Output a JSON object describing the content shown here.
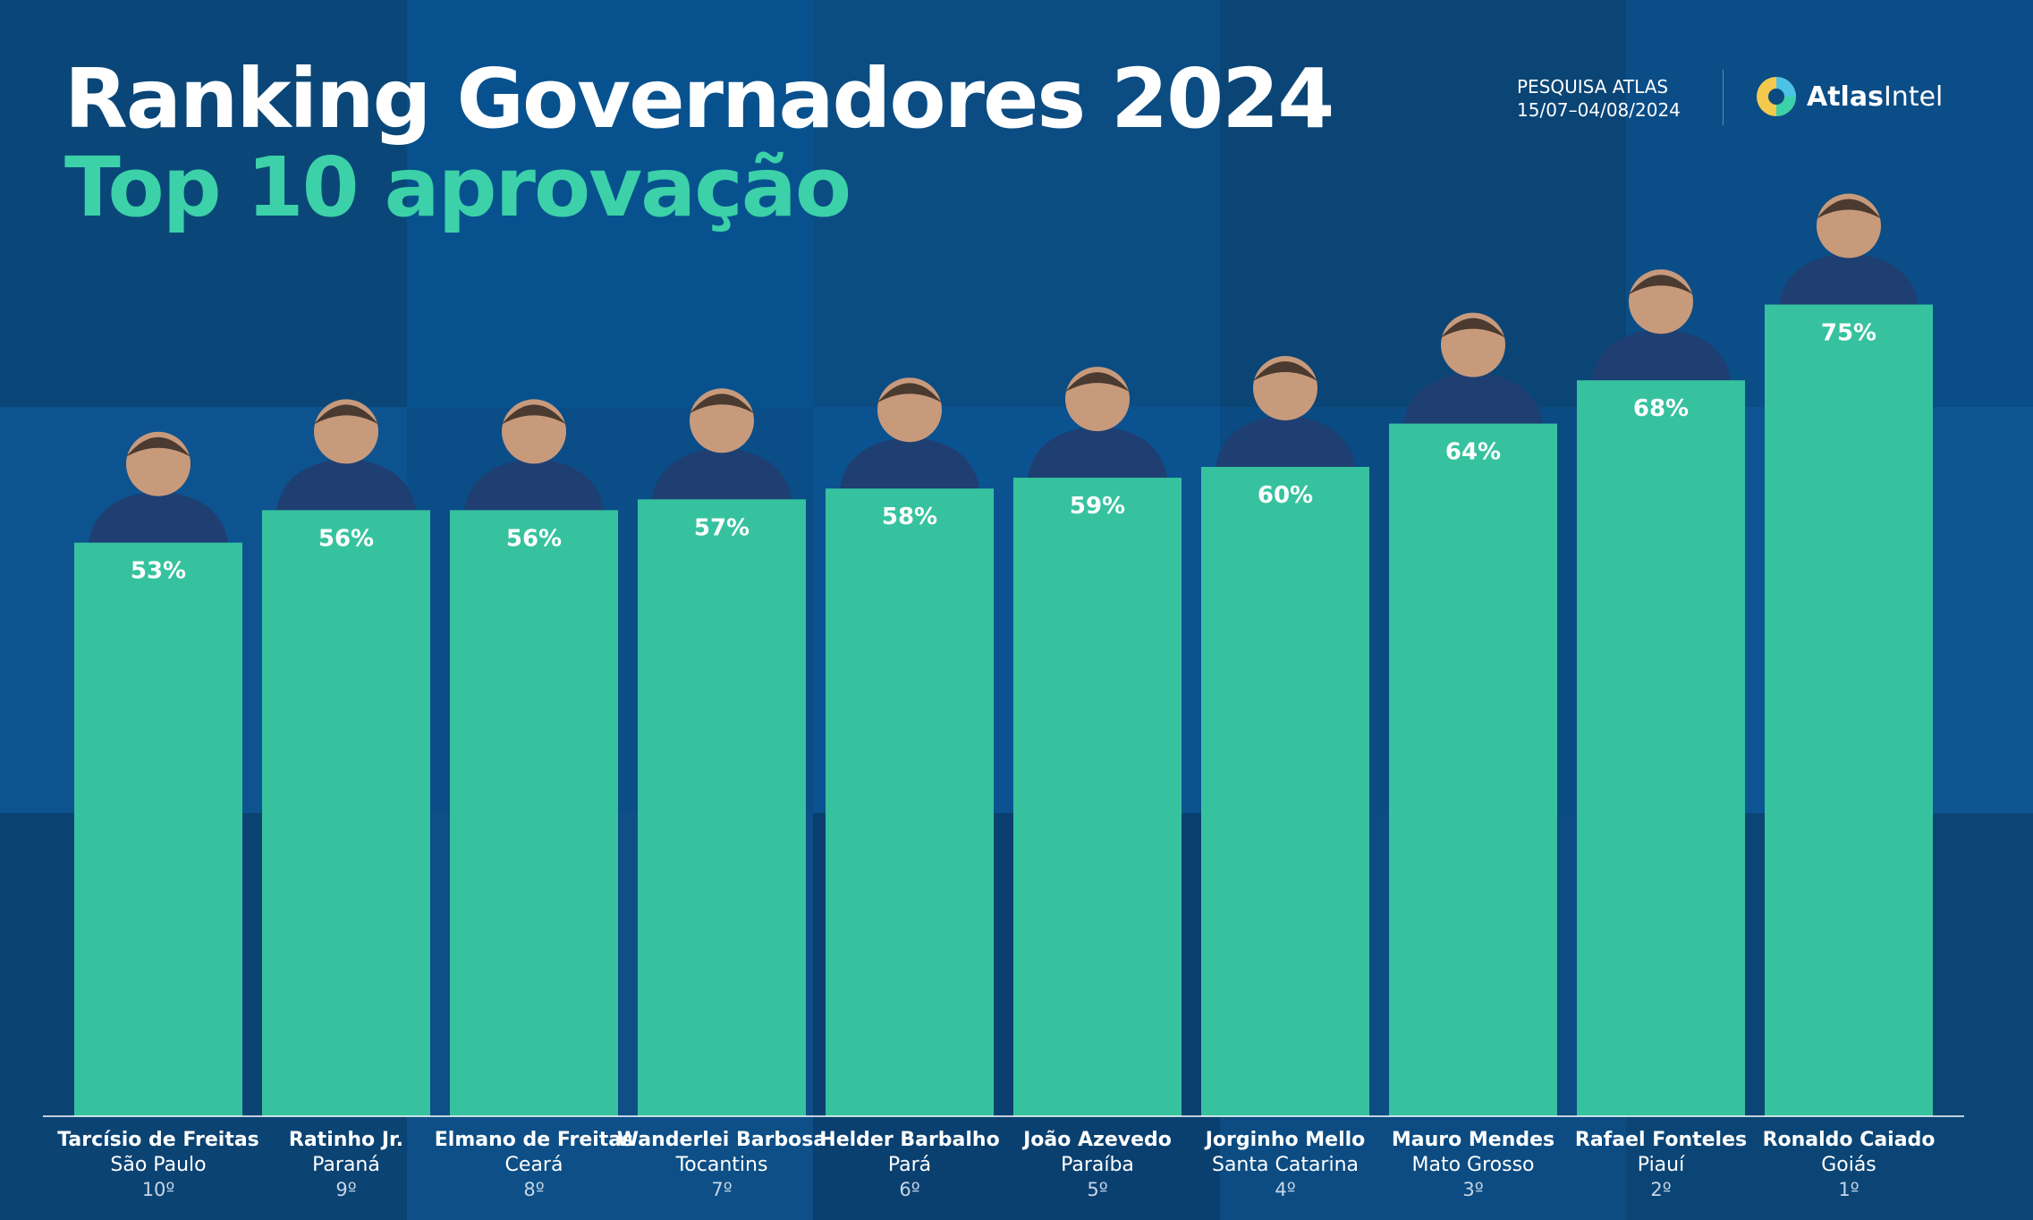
{
  "header": {
    "title": "Ranking Governadores 2024",
    "subtitle": "Top 10 aprovação",
    "survey_line1": "PESQUISA ATLAS",
    "survey_line2": "15/07–04/08/2024",
    "logo_bold": "Atlas",
    "logo_light": "Intel"
  },
  "colors": {
    "bar": "#36c29f",
    "text": "#ffffff",
    "accent": "#3cd1a8",
    "background": "#0b4a7e"
  },
  "chart_data": {
    "type": "bar",
    "title": "Ranking Governadores 2024",
    "subtitle": "Top 10 aprovação",
    "ylim": [
      0,
      80
    ],
    "categories": [
      "Tarcísio de Freitas",
      "Ratinho Jr.",
      "Elmano de Freitas",
      "Wanderlei Barbosa",
      "Helder Barbalho",
      "João Azevedo",
      "Jorginho Mello",
      "Mauro Mendes",
      "Rafael Fonteles",
      "Ronaldo Caiado"
    ],
    "states": [
      "São Paulo",
      "Paraná",
      "Ceará",
      "Tocantins",
      "Pará",
      "Paraíba",
      "Santa Catarina",
      "Mato Grosso",
      "Piauí",
      "Goiás"
    ],
    "ranks": [
      "10º",
      "9º",
      "8º",
      "7º",
      "6º",
      "5º",
      "4º",
      "3º",
      "2º",
      "1º"
    ],
    "values": [
      53,
      56,
      56,
      57,
      58,
      59,
      60,
      64,
      68,
      75
    ],
    "value_labels": [
      "53%",
      "56%",
      "56%",
      "57%",
      "58%",
      "59%",
      "60%",
      "64%",
      "68%",
      "75%"
    ]
  }
}
